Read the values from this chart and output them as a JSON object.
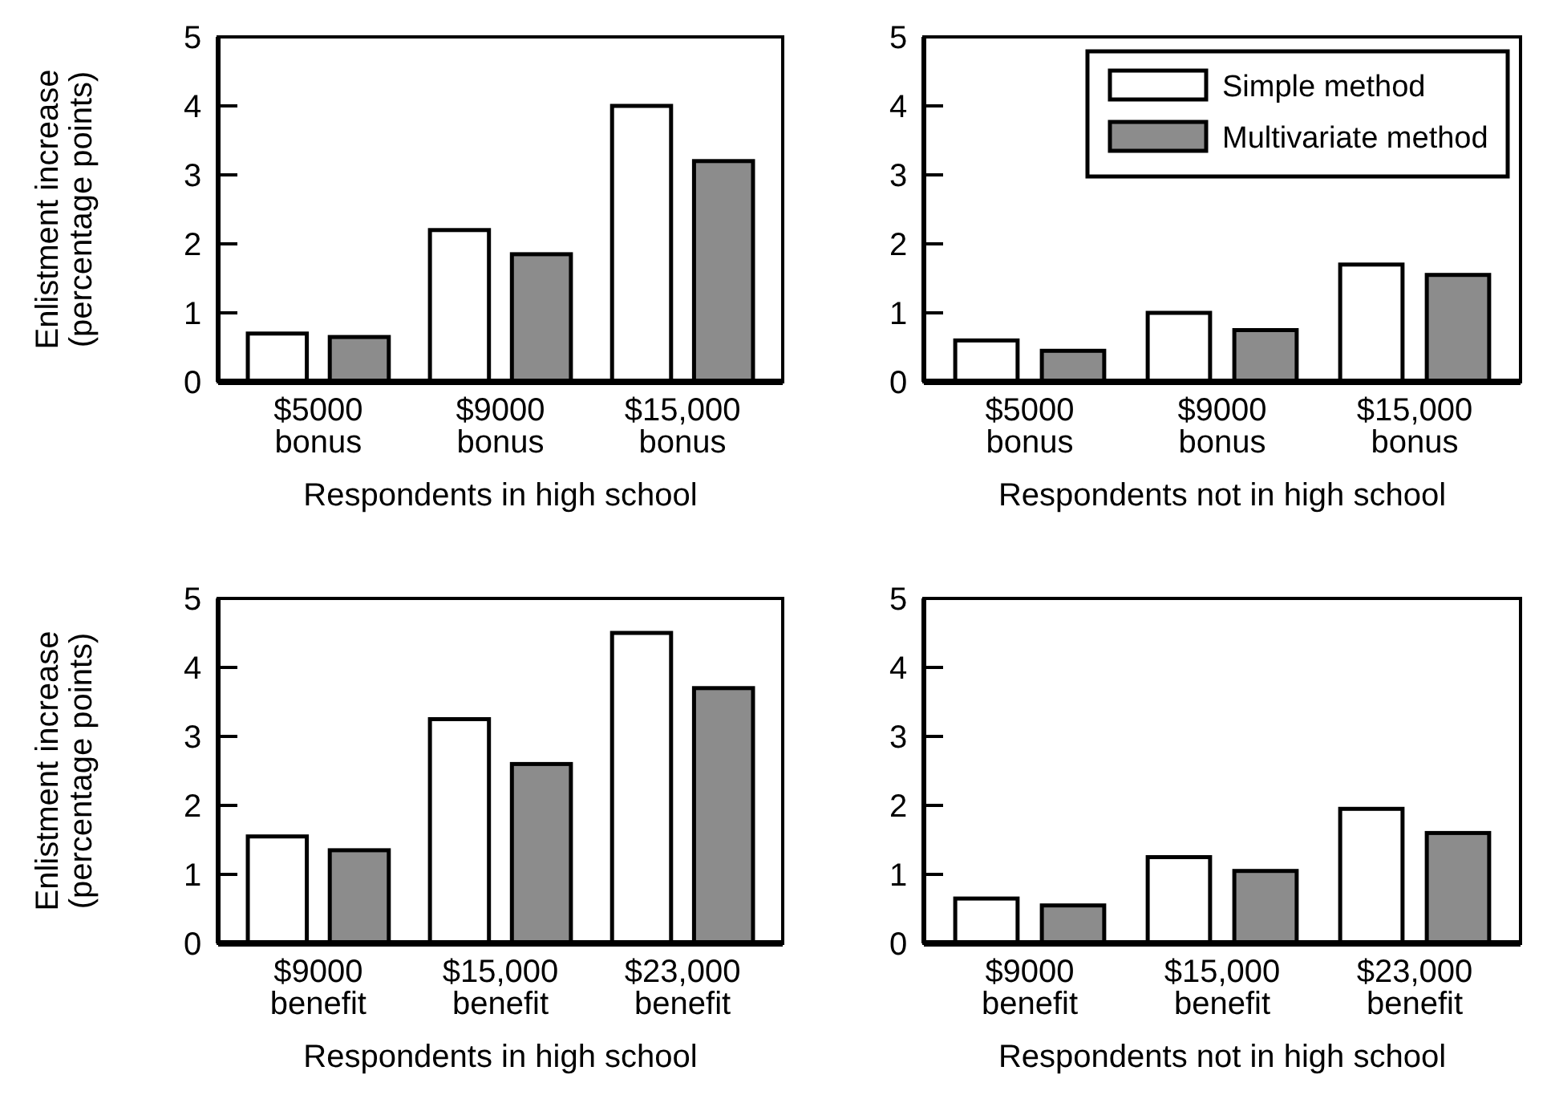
{
  "chart_data": [
    {
      "type": "bar",
      "categories": [
        "$5000\nbonus",
        "$9000\nbonus",
        "$15,000\nbonus"
      ],
      "xlabel": "Respondents in high school",
      "ylabel": "Enlistment increase\n(percentage points)",
      "ylim": [
        0,
        5
      ],
      "yticks": [
        0,
        1,
        2,
        3,
        4,
        5
      ],
      "series": [
        {
          "color": "#ffffff",
          "values": [
            0.7,
            2.2,
            4.0
          ]
        },
        {
          "color": "#8c8c8c",
          "values": [
            0.65,
            1.85,
            3.2
          ]
        }
      ]
    },
    {
      "type": "bar",
      "categories": [
        "$5000\nbonus",
        "$9000\nbonus",
        "$15,000\nbonus"
      ],
      "xlabel": "Respondents not in high school",
      "ylim": [
        0,
        5
      ],
      "yticks": [
        0,
        1,
        2,
        3,
        4,
        5
      ],
      "legend": "top right",
      "series": [
        {
          "name": "Simple method",
          "color": "#ffffff",
          "values": [
            0.6,
            1.0,
            1.7
          ]
        },
        {
          "name": "Multivariate method",
          "color": "#8c8c8c",
          "values": [
            0.45,
            0.75,
            1.55
          ]
        }
      ]
    },
    {
      "type": "bar",
      "categories": [
        "$9000\nbenefit",
        "$15,000\nbenefit",
        "$23,000\nbenefit"
      ],
      "xlabel": "Respondents in high school",
      "ylabel": "Enlistment increase\n(percentage points)",
      "ylim": [
        0,
        5
      ],
      "yticks": [
        0,
        1,
        2,
        3,
        4,
        5
      ],
      "series": [
        {
          "color": "#ffffff",
          "values": [
            1.55,
            3.25,
            4.5
          ]
        },
        {
          "color": "#8c8c8c",
          "values": [
            1.35,
            2.6,
            3.7
          ]
        }
      ]
    },
    {
      "type": "bar",
      "categories": [
        "$9000\nbenefit",
        "$15,000\nbenefit",
        "$23,000\nbenefit"
      ],
      "xlabel": "Respondents not in high school",
      "ylim": [
        0,
        5
      ],
      "yticks": [
        0,
        1,
        2,
        3,
        4,
        5
      ],
      "series": [
        {
          "color": "#ffffff",
          "values": [
            0.65,
            1.25,
            1.95
          ]
        },
        {
          "color": "#8c8c8c",
          "values": [
            0.55,
            1.05,
            1.6
          ]
        }
      ]
    }
  ]
}
